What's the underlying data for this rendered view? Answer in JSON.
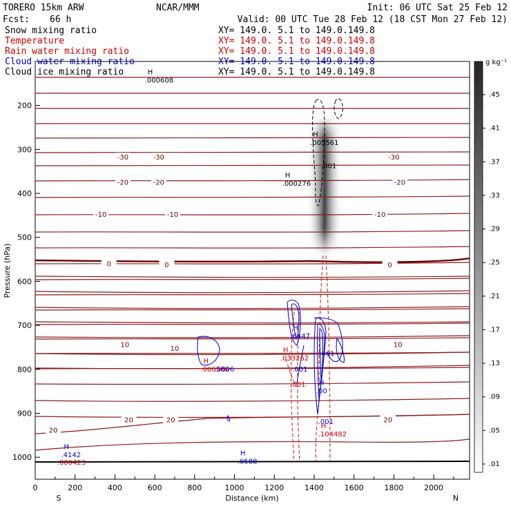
{
  "header": {
    "model": "TORERO   15km ARW",
    "org": "NCAR/MMM",
    "init": "Init: 06 UTC Sat 25 Feb 12",
    "fcst_label": "Fcst:",
    "fcst_value": "66 h",
    "valid": "Valid: 00 UTC Tue 28 Feb 12 (18 CST Mon 27 Feb 12)"
  },
  "fields": [
    {
      "name": "Snow mixing ratio",
      "xy": "XY= 149.0.  5.1 to 149.0.149.8",
      "color": "#000000"
    },
    {
      "name": "Temperature",
      "xy": "XY= 149.0.  5.1 to 149.0.149.8",
      "color": "#cc0000"
    },
    {
      "name": "Rain water mixing ratio",
      "xy": "XY= 149.0.  5.1 to 149.0.149.8",
      "color": "#cc0000"
    },
    {
      "name": "Cloud water mixing ratio",
      "xy": "XY= 149.0.  5.1 to 149.0.149.8",
      "color": "#0000cc"
    },
    {
      "name": "Cloud ice mixing ratio",
      "xy": "XY= 149.0.  5.1 to 149.0.149.8",
      "color": "#000000"
    }
  ],
  "chart_data": {
    "type": "contour",
    "xlabel": "Distance (km)",
    "ylabel": "Pressure (hPa)",
    "xlim": [
      0,
      2180
    ],
    "ylim": [
      1050,
      100
    ],
    "x_ticks": [
      "0",
      "200",
      "400",
      "600",
      "800",
      "1000",
      "1200",
      "1400",
      "1600",
      "1800",
      "2000"
    ],
    "y_ticks": [
      "200",
      "300",
      "400",
      "500",
      "600",
      "700",
      "800",
      "900",
      "1000"
    ],
    "endpoints": {
      "left": "S",
      "right": "N"
    },
    "colorbar": {
      "unit": "g kg⁻¹",
      "ticks": [
        ".01",
        ".05",
        ".09",
        ".13",
        ".17",
        ".21",
        ".25",
        ".29",
        ".33",
        ".37",
        ".41",
        ".45"
      ]
    },
    "temperature_labels": [
      {
        "text": "-30",
        "x": 440,
        "p": 317
      },
      {
        "text": "-30",
        "x": 620,
        "p": 317
      },
      {
        "text": "-30",
        "x": 1800,
        "p": 317
      },
      {
        "text": "-20",
        "x": 440,
        "p": 374
      },
      {
        "text": "-20",
        "x": 620,
        "p": 374
      },
      {
        "text": "-20",
        "x": 1830,
        "p": 374
      },
      {
        "text": "-10",
        "x": 330,
        "p": 447
      },
      {
        "text": "-10",
        "x": 690,
        "p": 447
      },
      {
        "text": "-10",
        "x": 1730,
        "p": 447
      },
      {
        "text": "0",
        "x": 370,
        "p": 559
      },
      {
        "text": "0",
        "x": 660,
        "p": 562
      },
      {
        "text": "0",
        "x": 1780,
        "p": 562
      },
      {
        "text": "10",
        "x": 450,
        "p": 743
      },
      {
        "text": "10",
        "x": 700,
        "p": 752
      },
      {
        "text": "10",
        "x": 1820,
        "p": 743
      },
      {
        "text": "20",
        "x": 90,
        "p": 938
      },
      {
        "text": "20",
        "x": 470,
        "p": 914
      },
      {
        "text": "20",
        "x": 680,
        "p": 914
      },
      {
        "text": "20",
        "x": 1770,
        "p": 914
      }
    ],
    "extrema": [
      {
        "mark": "H",
        "value": ".000608",
        "x": 550,
        "p": 143,
        "color": "#000000"
      },
      {
        "mark": "H",
        "value": ".005561",
        "x": 1380,
        "p": 285,
        "color": "#000000"
      },
      {
        "mark": "",
        "value": ".001",
        "x": 1435,
        "p": 338,
        "color": "#000000"
      },
      {
        "mark": "H",
        "value": ".000276",
        "x": 1240,
        "p": 378,
        "color": "#000000"
      },
      {
        "mark": "H",
        "value": ".6447",
        "x": 1280,
        "p": 725,
        "color": "#0000cc"
      },
      {
        "mark": "H",
        "value": ".033262",
        "x": 1230,
        "p": 775,
        "color": "#cc0000"
      },
      {
        "mark": "",
        "value": ".401",
        "x": 1425,
        "p": 765,
        "color": "#0000cc"
      },
      {
        "mark": "",
        "value": ".001",
        "x": 1290,
        "p": 800,
        "color": "#0000cc"
      },
      {
        "mark": "",
        "value": ".001",
        "x": 1280,
        "p": 835,
        "color": "#cc0000"
      },
      {
        "mark": "H",
        "value": ".00",
        "x": 1410,
        "p": 850,
        "color": "#0000cc"
      },
      {
        "mark": "H",
        "value": ".000506",
        "x": 830,
        "p": 800,
        "color": "#cc0000"
      },
      {
        "mark": "",
        "value": ".0806",
        "x": 900,
        "p": 800,
        "color": "#0000cc"
      },
      {
        "mark": "",
        "value": ".001",
        "x": 1420,
        "p": 920,
        "color": "#0000cc"
      },
      {
        "mark": "H",
        "value": ".104482",
        "x": 1420,
        "p": 948,
        "color": "#cc0000"
      },
      {
        "mark": "H",
        "value": ".4142",
        "x": 130,
        "p": 995,
        "color": "#0000cc"
      },
      {
        "mark": "",
        "value": ".000423",
        "x": 110,
        "p": 1012,
        "color": "#cc0000"
      },
      {
        "mark": "H",
        "value": ".0588",
        "x": 1015,
        "p": 1010,
        "color": "#0000cc"
      }
    ]
  }
}
